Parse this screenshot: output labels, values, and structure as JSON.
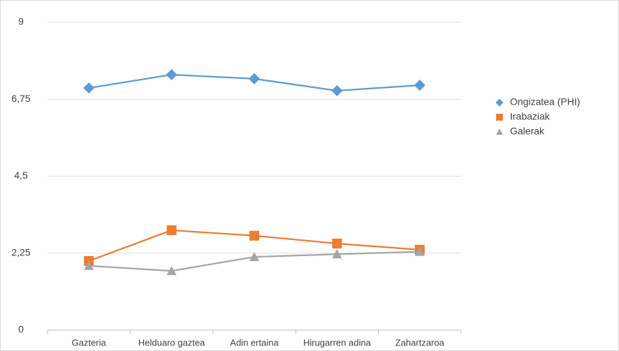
{
  "chart_data": {
    "type": "line",
    "categories": [
      "Gazteria",
      "Helduaro gaztea",
      "Adin ertaina",
      "Hirugarren adina",
      "Zahartzaroa"
    ],
    "series": [
      {
        "name": "Ongizatea (PHI)",
        "color": "#5b9bd5",
        "marker": "diamond",
        "values": [
          7.08,
          7.47,
          7.35,
          7.0,
          7.16
        ]
      },
      {
        "name": "Irabaziak",
        "color": "#ed7d31",
        "marker": "square",
        "values": [
          2.02,
          2.92,
          2.76,
          2.53,
          2.35
        ]
      },
      {
        "name": "Galerak",
        "color": "#a5a5a5",
        "marker": "triangle",
        "values": [
          1.88,
          1.73,
          2.14,
          2.22,
          2.29
        ]
      }
    ],
    "ylim": [
      0,
      9
    ],
    "yticks": [
      0,
      {
        "value": 2.25,
        "label": "2,25"
      },
      {
        "value": 4.5,
        "label": "4,5"
      },
      {
        "value": 6.75,
        "label": "6,75"
      },
      9
    ],
    "grid": true,
    "legend": "right"
  }
}
